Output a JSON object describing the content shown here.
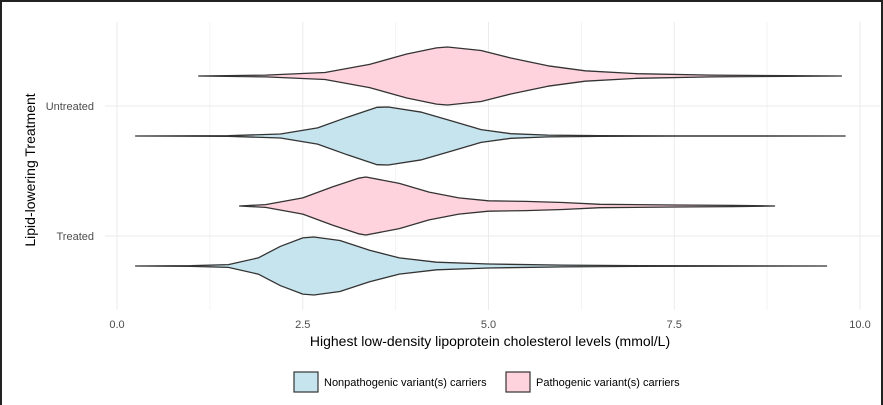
{
  "colors": {
    "nonpathogenic": "#c6e4ee",
    "pathogenic": "#ffd3dd",
    "outline": "#333333",
    "grid": "#ebebeb"
  },
  "chart_data": {
    "type": "violin",
    "orientation": "horizontal",
    "xlabel": "Highest low-density lipoprotein cholesterol levels (mmol/L)",
    "ylabel": "Lipid-lowering Treatment",
    "xlim": [
      0,
      10
    ],
    "x_ticks": [
      0.0,
      2.5,
      5.0,
      7.5,
      10.0
    ],
    "x_tick_labels": [
      "0.0",
      "2.5",
      "5.0",
      "7.5",
      "10.0"
    ],
    "categories": [
      "Untreated",
      "Treated"
    ],
    "grid": true,
    "legend_position": "bottom",
    "series": [
      {
        "name": "Nonpathogenic variant(s) carriers",
        "color_key": "nonpathogenic",
        "violins": [
          {
            "group": "Untreated",
            "x_min": 0.25,
            "x_max": 9.8,
            "profile": [
              [
                0.25,
                0.0
              ],
              [
                1.5,
                0.01
              ],
              [
                2.2,
                0.07
              ],
              [
                2.7,
                0.28
              ],
              [
                3.1,
                0.65
              ],
              [
                3.5,
                0.99
              ],
              [
                3.65,
                1.0
              ],
              [
                4.1,
                0.82
              ],
              [
                4.5,
                0.52
              ],
              [
                4.9,
                0.22
              ],
              [
                5.3,
                0.08
              ],
              [
                5.8,
                0.03
              ],
              [
                6.5,
                0.01
              ],
              [
                7.5,
                0.005
              ],
              [
                8.5,
                0.003
              ],
              [
                9.8,
                0.0
              ]
            ]
          },
          {
            "group": "Treated",
            "x_min": 0.25,
            "x_max": 9.55,
            "profile": [
              [
                0.25,
                0.0
              ],
              [
                1.0,
                0.01
              ],
              [
                1.5,
                0.05
              ],
              [
                1.9,
                0.28
              ],
              [
                2.2,
                0.68
              ],
              [
                2.5,
                0.97
              ],
              [
                2.65,
                1.0
              ],
              [
                3.0,
                0.88
              ],
              [
                3.4,
                0.54
              ],
              [
                3.8,
                0.28
              ],
              [
                4.3,
                0.13
              ],
              [
                5.0,
                0.07
              ],
              [
                6.0,
                0.03
              ],
              [
                7.0,
                0.015
              ],
              [
                8.0,
                0.008
              ],
              [
                9.55,
                0.0
              ]
            ]
          }
        ]
      },
      {
        "name": "Pathogenic variant(s) carriers",
        "color_key": "pathogenic",
        "violins": [
          {
            "group": "Untreated",
            "x_min": 1.1,
            "x_max": 9.75,
            "profile": [
              [
                1.1,
                0.0
              ],
              [
                2.0,
                0.03
              ],
              [
                2.8,
                0.12
              ],
              [
                3.4,
                0.4
              ],
              [
                3.9,
                0.76
              ],
              [
                4.3,
                0.97
              ],
              [
                4.45,
                1.0
              ],
              [
                4.9,
                0.88
              ],
              [
                5.3,
                0.62
              ],
              [
                5.8,
                0.35
              ],
              [
                6.3,
                0.18
              ],
              [
                7.0,
                0.08
              ],
              [
                8.0,
                0.03
              ],
              [
                9.0,
                0.01
              ],
              [
                9.75,
                0.0
              ]
            ]
          },
          {
            "group": "Treated",
            "x_min": 1.65,
            "x_max": 8.85,
            "profile": [
              [
                1.65,
                0.0
              ],
              [
                2.0,
                0.05
              ],
              [
                2.5,
                0.28
              ],
              [
                2.9,
                0.66
              ],
              [
                3.25,
                0.96
              ],
              [
                3.35,
                1.0
              ],
              [
                3.8,
                0.78
              ],
              [
                4.2,
                0.48
              ],
              [
                4.6,
                0.28
              ],
              [
                5.0,
                0.18
              ],
              [
                5.5,
                0.16
              ],
              [
                6.0,
                0.12
              ],
              [
                6.5,
                0.06
              ],
              [
                7.5,
                0.035
              ],
              [
                8.3,
                0.02
              ],
              [
                8.85,
                0.0
              ]
            ]
          }
        ]
      }
    ]
  }
}
